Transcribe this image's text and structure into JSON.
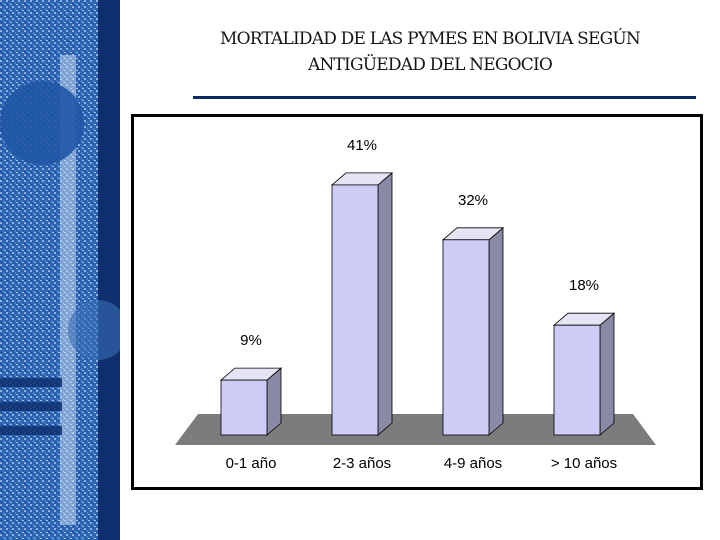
{
  "slide": {
    "title_line1": "MORTALIDAD DE LAS PYMES EN BOLIVIA SEGÚN",
    "title_line2": "ANTIGÜEDAD DEL NEGOCIO"
  },
  "colors": {
    "sidebar_blue": "#1e5aa8",
    "sidebar_dark": "#0d2f6e",
    "title_rule": "#0b2a63",
    "bar_front": "#ccccf7",
    "bar_side": "#8a8aa6",
    "bar_top": "#e4e4f4",
    "floor": "#7c7c7c"
  },
  "chart_data": {
    "type": "bar",
    "categories": [
      "0-1 año",
      "2-3 años",
      "4-9 años",
      "> 10 años"
    ],
    "values": [
      9,
      41,
      32,
      18
    ],
    "value_labels": [
      "9%",
      "41%",
      "32%",
      "18%"
    ],
    "title": "MORTALIDAD DE LAS PYMES EN BOLIVIA SEGÚN ANTIGÜEDAD DEL NEGOCIO",
    "xlabel": "",
    "ylabel": "",
    "ylim": [
      0,
      45
    ],
    "grid": false,
    "legend": "none",
    "style": "3d"
  }
}
